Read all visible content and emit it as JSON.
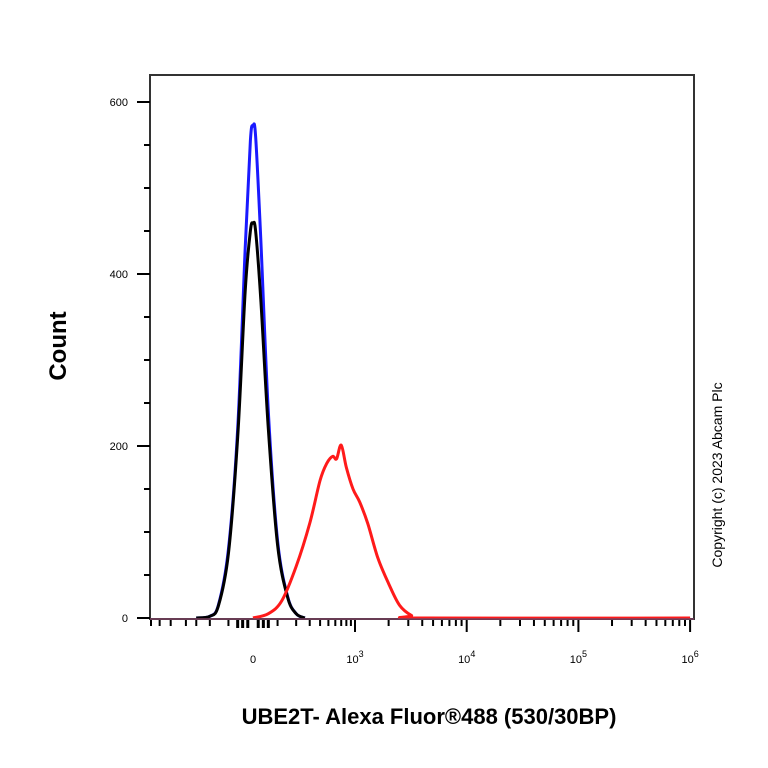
{
  "chart_data": {
    "type": "line",
    "subtype": "flow-cytometry-histogram",
    "title": "",
    "xlabel": "UBE2T- Alexa Fluor®488 (530/30BP)",
    "ylabel": "Count",
    "x_scale": "biexponential",
    "x_tick_labels": [
      "0",
      "10^3",
      "10^4",
      "10^5",
      "10^6"
    ],
    "y_tick_labels": [
      "0",
      "200",
      "400",
      "600"
    ],
    "ylim": [
      0,
      640
    ],
    "grid": false,
    "legend": "none",
    "series": [
      {
        "name": "blue-control",
        "color": "#1a1aff",
        "points": [
          [
            -300,
            0
          ],
          [
            -200,
            2
          ],
          [
            -150,
            15
          ],
          [
            -100,
            80
          ],
          [
            -60,
            220
          ],
          [
            -30,
            430
          ],
          [
            -10,
            555
          ],
          [
            0,
            572
          ],
          [
            10,
            560
          ],
          [
            30,
            440
          ],
          [
            60,
            240
          ],
          [
            100,
            90
          ],
          [
            150,
            25
          ],
          [
            200,
            5
          ],
          [
            260,
            0
          ]
        ]
      },
      {
        "name": "black-control",
        "color": "#000000",
        "points": [
          [
            -300,
            0
          ],
          [
            -200,
            2
          ],
          [
            -150,
            14
          ],
          [
            -100,
            75
          ],
          [
            -60,
            210
          ],
          [
            -30,
            380
          ],
          [
            -10,
            450
          ],
          [
            0,
            459
          ],
          [
            10,
            450
          ],
          [
            30,
            370
          ],
          [
            60,
            220
          ],
          [
            100,
            85
          ],
          [
            150,
            24
          ],
          [
            200,
            5
          ],
          [
            260,
            0
          ]
        ]
      },
      {
        "name": "red-UBE2T",
        "color": "#ff1a1a",
        "points": [
          [
            0,
            0
          ],
          [
            60,
            5
          ],
          [
            120,
            20
          ],
          [
            200,
            60
          ],
          [
            300,
            110
          ],
          [
            400,
            160
          ],
          [
            480,
            180
          ],
          [
            560,
            188
          ],
          [
            620,
            185
          ],
          [
            700,
            201
          ],
          [
            800,
            175
          ],
          [
            950,
            150
          ],
          [
            1100,
            135
          ],
          [
            1300,
            110
          ],
          [
            1600,
            70
          ],
          [
            2000,
            40
          ],
          [
            2500,
            15
          ],
          [
            3200,
            3
          ],
          [
            4000,
            0
          ],
          [
            1000000,
            0
          ]
        ]
      }
    ]
  },
  "plot": {
    "copyright": "Copyright (c) 2023 Abcam Plc"
  }
}
